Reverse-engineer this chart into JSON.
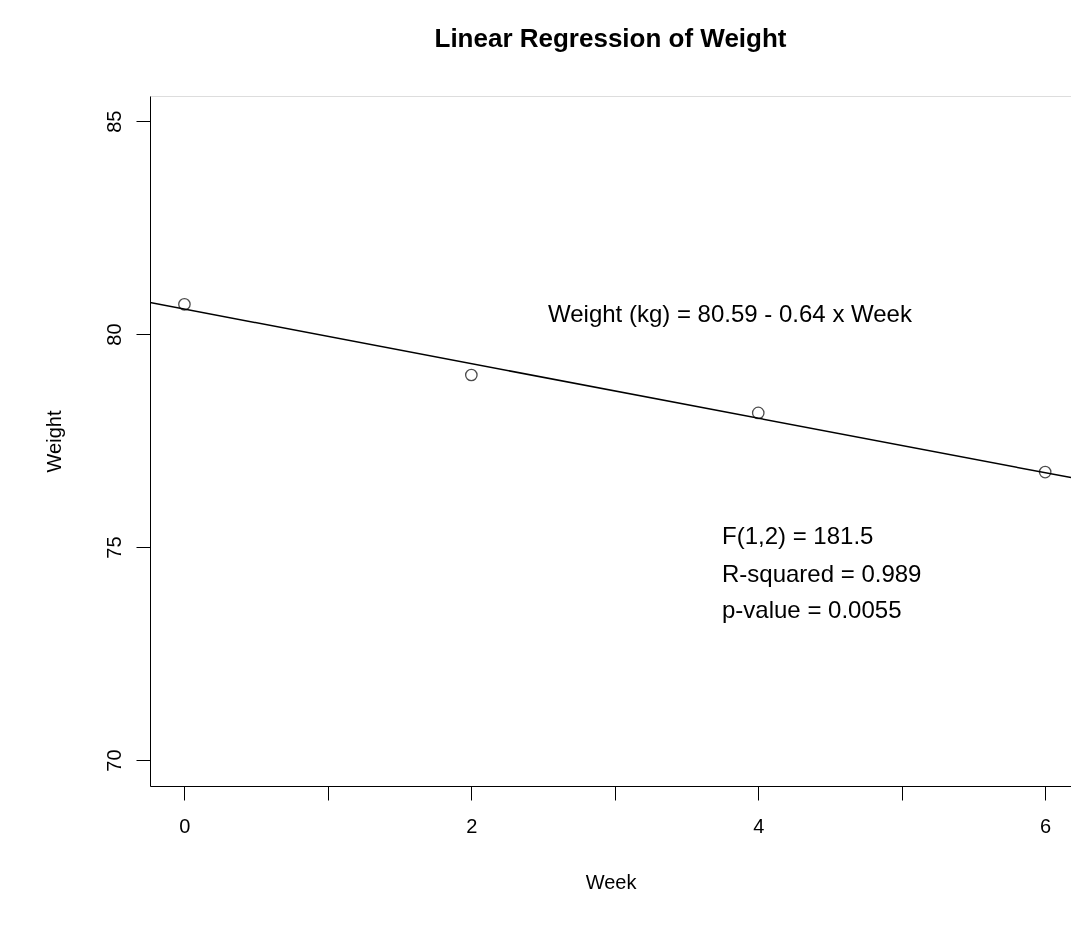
{
  "chart_data": {
    "type": "scatter",
    "title": "Linear Regression of Weight",
    "xlabel": "Week",
    "ylabel": "Weight",
    "series": [
      {
        "color": "#000000",
        "marker": "circle",
        "x": [
          0,
          2,
          4,
          6
        ],
        "values": [
          80.7,
          79.04,
          78.15,
          76.76
        ]
      },
      {
        "type": "line",
        "color": "#000000",
        "x": [
          -0.24,
          6.18
        ],
        "values": [
          80.74,
          76.63
        ]
      }
    ],
    "xlim": [
      -0.24,
      6.18
    ],
    "ylim": [
      69.39,
      85.59
    ],
    "xticks": [
      0,
      {
        "value": 1,
        "label": null
      },
      2,
      {
        "value": 3,
        "label": null
      },
      4,
      {
        "value": 5,
        "label": null
      },
      6
    ],
    "yticks": [
      70,
      75,
      80,
      85
    ],
    "grid": false,
    "annotations": [
      "Weight (kg) = 80.59 - 0.64 x Week",
      "F(1,2) = 181.5",
      "R-squared = 0.989",
      "p-value = 0.0055"
    ]
  }
}
